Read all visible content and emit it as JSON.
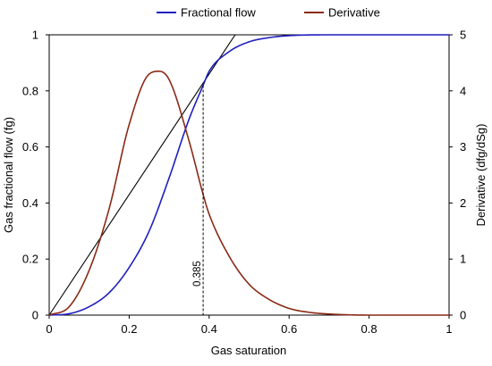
{
  "chart_data": {
    "type": "line",
    "xlabel": "Gas saturation",
    "ylabel_left": "Gas fractional flow (fg)",
    "ylabel_right": "Derivative (dfg/dSg)",
    "xlim": [
      0,
      1
    ],
    "ylim_left": [
      0,
      1
    ],
    "ylim_right": [
      0,
      5
    ],
    "x_ticks": [
      "0",
      "0.2",
      "0.4",
      "0.6",
      "0.8",
      "1"
    ],
    "y_left_ticks": [
      "0",
      "0.2",
      "0.4",
      "0.6",
      "0.8",
      "1"
    ],
    "y_right_ticks": [
      "0",
      "1",
      "2",
      "3",
      "4",
      "5"
    ],
    "grid": false,
    "legend_position": "top-center",
    "series": [
      {
        "name": "Fractional flow",
        "axis": "left",
        "color": "#1f1fbf",
        "x": [
          0,
          0.05,
          0.1,
          0.15,
          0.2,
          0.25,
          0.3,
          0.35,
          0.385,
          0.4,
          0.45,
          0.5,
          0.55,
          0.6,
          0.7,
          0.8,
          0.9,
          1.0
        ],
        "y": [
          0,
          0.005,
          0.03,
          0.08,
          0.17,
          0.3,
          0.49,
          0.7,
          0.82,
          0.87,
          0.94,
          0.975,
          0.99,
          0.997,
          1.0,
          1.0,
          1.0,
          1.0
        ]
      },
      {
        "name": "Derivative",
        "axis": "right",
        "color": "#8b2a16",
        "x": [
          0,
          0.05,
          0.1,
          0.15,
          0.2,
          0.25,
          0.275,
          0.3,
          0.35,
          0.385,
          0.4,
          0.45,
          0.5,
          0.55,
          0.6,
          0.65,
          0.7,
          0.8,
          0.9,
          1.0
        ],
        "y": [
          0,
          0.15,
          0.8,
          1.9,
          3.4,
          4.3,
          4.35,
          4.2,
          3.1,
          2.15,
          1.8,
          1.05,
          0.55,
          0.28,
          0.12,
          0.05,
          0.02,
          0,
          0,
          0
        ]
      }
    ],
    "tangent_line": {
      "color": "#000000",
      "x": [
        0,
        0.465
      ],
      "y": [
        0,
        1.0
      ]
    },
    "annotation": {
      "label": "0.385",
      "x": 0.385,
      "y_top": 0.82
    }
  }
}
